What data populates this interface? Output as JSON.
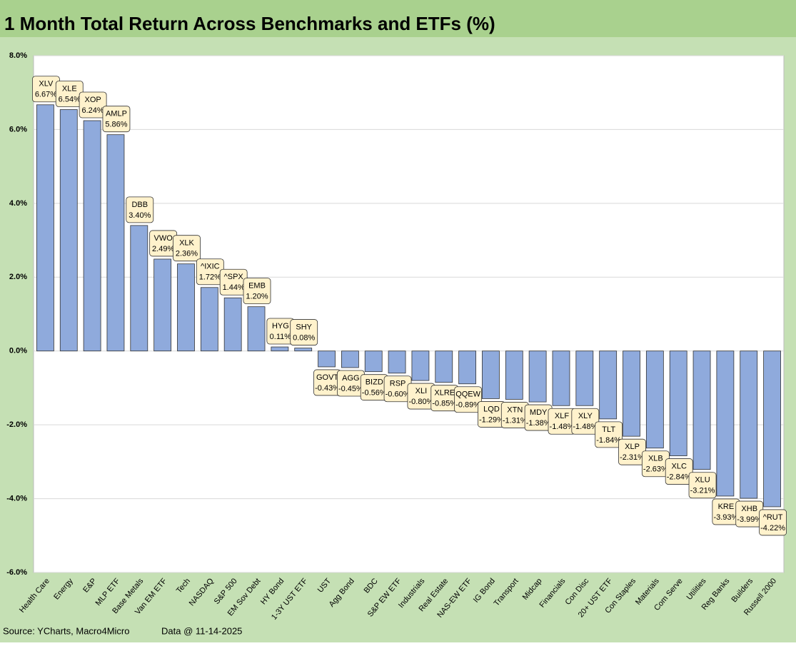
{
  "chart_data": {
    "type": "bar",
    "title": "1 Month Total Return Across Benchmarks and ETFs (%)",
    "categories": [
      "Health Care",
      "Energy",
      "E&P",
      "MLP ETF",
      "Base Metals",
      "Van EM ETF",
      "Tech",
      "NASDAQ",
      "S&P 500",
      "EM Sov Debt",
      "HY Bond",
      "1-3Y UST ETF",
      "UST",
      "Agg Bond",
      "BDC",
      "S&P EW ETF",
      "Industrials",
      "Real Estate",
      "NAS-EW ETF",
      "IG Bond",
      "Transport",
      "Midcap",
      "Financials",
      "Con Disc",
      "20+ UST ETF",
      "Con Staples",
      "Materials",
      "Com Serve",
      "Utilities",
      "Reg Banks",
      "Builders",
      "Russell 2000"
    ],
    "tickers": [
      "XLV",
      "XLE",
      "XOP",
      "AMLP",
      "DBB",
      "VWO",
      "XLK",
      "^IXIC",
      "^SPX",
      "EMB",
      "HYG",
      "SHY",
      "GOVT",
      "AGG",
      "BIZD",
      "RSP",
      "XLI",
      "XLRE",
      "QQEW",
      "LQD",
      "XTN",
      "MDY",
      "XLF",
      "XLY",
      "TLT",
      "XLP",
      "XLB",
      "XLC",
      "XLU",
      "KRE",
      "XHB",
      "^RUT"
    ],
    "values": [
      6.67,
      6.54,
      6.24,
      5.86,
      3.4,
      2.49,
      2.36,
      1.72,
      1.44,
      1.2,
      0.11,
      0.08,
      -0.43,
      -0.45,
      -0.56,
      -0.6,
      -0.8,
      -0.85,
      -0.89,
      -1.29,
      -1.31,
      -1.38,
      -1.48,
      -1.48,
      -1.84,
      -2.31,
      -2.63,
      -2.84,
      -3.21,
      -3.93,
      -3.99,
      -4.22
    ],
    "value_labels": [
      "6.67%",
      "6.54%",
      "6.24%",
      "5.86%",
      "3.40%",
      "2.49%",
      "2.36%",
      "1.72%",
      "1.44%",
      "1.20%",
      "0.11%",
      "0.08%",
      "-0.43%",
      "-0.45%",
      "-0.56%",
      "-0.60%",
      "-0.80%",
      "-0.85%",
      "-0.89%",
      "-1.29%",
      "-1.31%",
      "-1.38%",
      "-1.48%",
      "-1.48%",
      "-1.84%",
      "-2.31%",
      "-2.63%",
      "-2.84%",
      "-3.21%",
      "-3.93%",
      "-3.99%",
      "-4.22%"
    ],
    "color": "#8faadc",
    "ylim": [
      -6,
      8
    ],
    "yticks": [
      {
        "value": -6,
        "label": "-6.0%"
      },
      {
        "value": -4,
        "label": "-4.0%"
      },
      {
        "value": -2,
        "label": "-2.0%"
      },
      {
        "value": 0,
        "label": "0.0%"
      },
      {
        "value": 2,
        "label": "2.0%"
      },
      {
        "value": 4,
        "label": "4.0%"
      },
      {
        "value": 6,
        "label": "6.0%"
      },
      {
        "value": 8,
        "label": "8.0%"
      }
    ],
    "grid": true,
    "source": "Source: YCharts, Macro4Micro",
    "data_date": "Data @ 11-14-2025"
  }
}
